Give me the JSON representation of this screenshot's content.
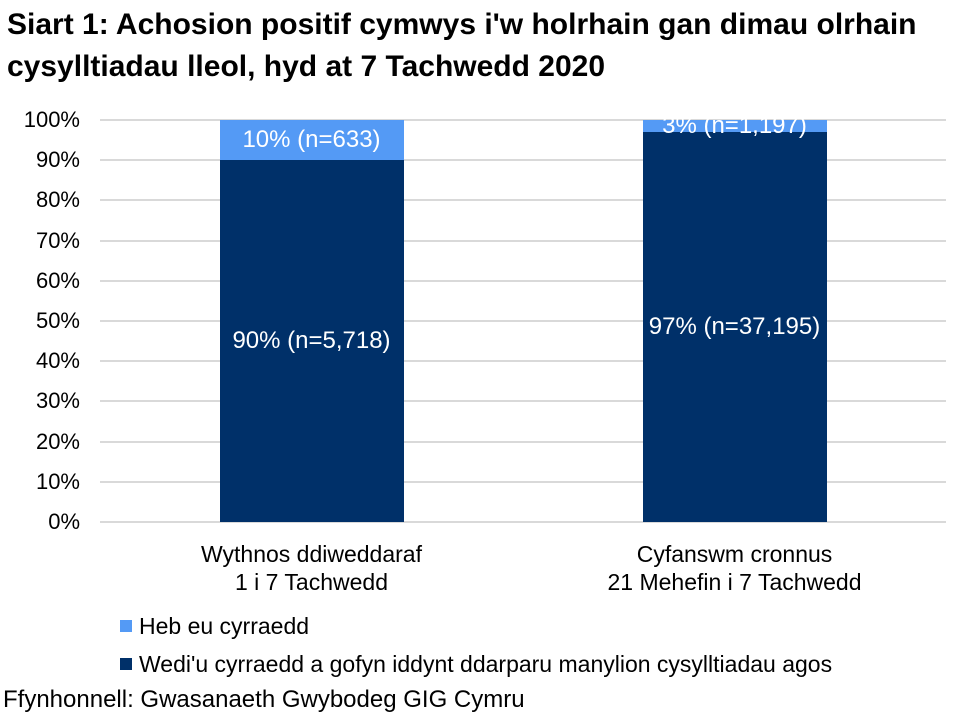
{
  "title": "Siart 1: Achosion positif cymwys i'w holrhain gan dimau olrhain cysylltiadau lleol, hyd at 7 Tachwedd 2020",
  "source": "Ffynhonnell: Gwasanaeth Gwybodeg GIG Cymru",
  "colors": {
    "reached_dark_blue": "#003069",
    "not_reached_light_blue": "#549AF5",
    "gridline_gray": "#D9D9D9",
    "segment_label_text": "#FFFFFF",
    "text": "#000000"
  },
  "chart_data": {
    "type": "bar",
    "stacked": true,
    "grid": true,
    "legend_position": "bottom-left",
    "title": "Siart 1: Achosion positif cymwys i'w holrhain gan dimau olrhain cysylltiadau lleol, hyd at 7 Tachwedd 2020",
    "xlabel": "",
    "ylabel": "",
    "ylim": [
      0,
      100
    ],
    "y_ticks": [
      "0%",
      "10%",
      "20%",
      "30%",
      "40%",
      "50%",
      "60%",
      "70%",
      "80%",
      "90%",
      "100%"
    ],
    "categories": [
      {
        "line1": "Wythnos ddiweddaraf",
        "line2": "1 i 7 Tachwedd"
      },
      {
        "line1": "Cyfanswm cronnus",
        "line2": "21 Mehefin i 7 Tachwedd"
      }
    ],
    "series": [
      {
        "name": "Wedi'u cyrraedd a gofyn iddynt ddarparu manylion cysylltiadau agos",
        "color": "#003069",
        "values": [
          90,
          97
        ],
        "counts": [
          5718,
          37195
        ],
        "labels": [
          "90% (n=5,718)",
          "97% (n=37,195)"
        ]
      },
      {
        "name": "Heb eu cyrraedd",
        "color": "#549AF5",
        "values": [
          10,
          3
        ],
        "counts": [
          633,
          1197
        ],
        "labels": [
          "10% (n=633)",
          "3% (n=1,197)"
        ]
      }
    ]
  },
  "legend": {
    "items": [
      {
        "label": "Heb eu cyrraedd",
        "color": "#549AF5"
      },
      {
        "label": "Wedi'u cyrraedd a gofyn iddynt ddarparu manylion cysylltiadau agos",
        "color": "#003069"
      }
    ]
  }
}
